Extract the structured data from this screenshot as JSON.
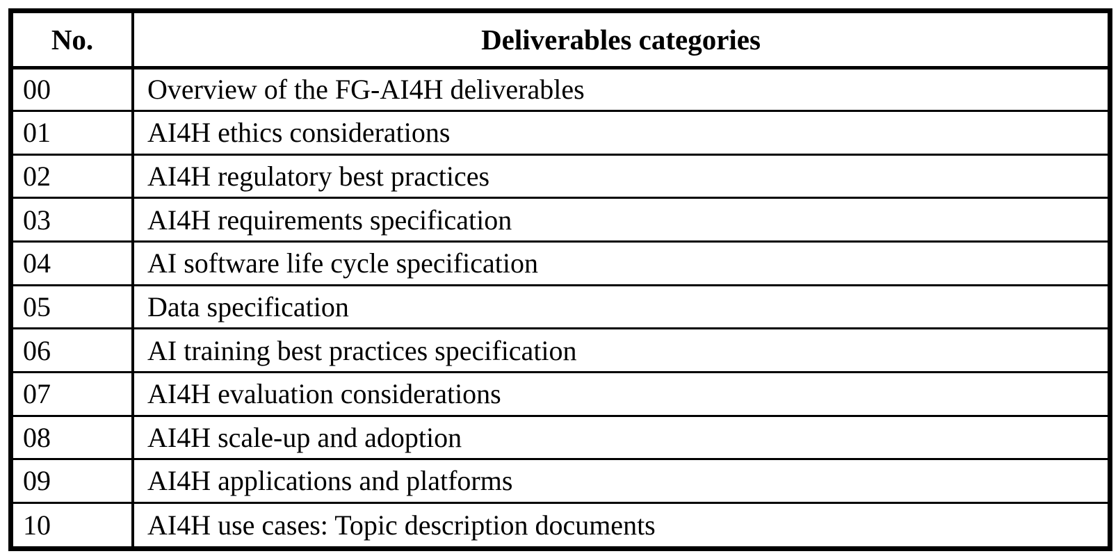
{
  "table": {
    "headers": {
      "no": "No.",
      "category": "Deliverables categories"
    },
    "rows": [
      {
        "no": "00",
        "category": "Overview of the FG-AI4H deliverables"
      },
      {
        "no": "01",
        "category": "AI4H ethics considerations"
      },
      {
        "no": "02",
        "category": "AI4H regulatory best practices"
      },
      {
        "no": "03",
        "category": "AI4H requirements specification"
      },
      {
        "no": "04",
        "category": "AI software life cycle specification"
      },
      {
        "no": "05",
        "category": "Data specification"
      },
      {
        "no": "06",
        "category": "AI training best practices specification"
      },
      {
        "no": "07",
        "category": "AI4H evaluation considerations"
      },
      {
        "no": "08",
        "category": "AI4H scale-up and adoption"
      },
      {
        "no": "09",
        "category": "AI4H applications and platforms"
      },
      {
        "no": "10",
        "category": "AI4H use cases: Topic description documents"
      }
    ]
  },
  "colors": {
    "border": "#000000",
    "text": "#000000",
    "background": "#ffffff"
  }
}
